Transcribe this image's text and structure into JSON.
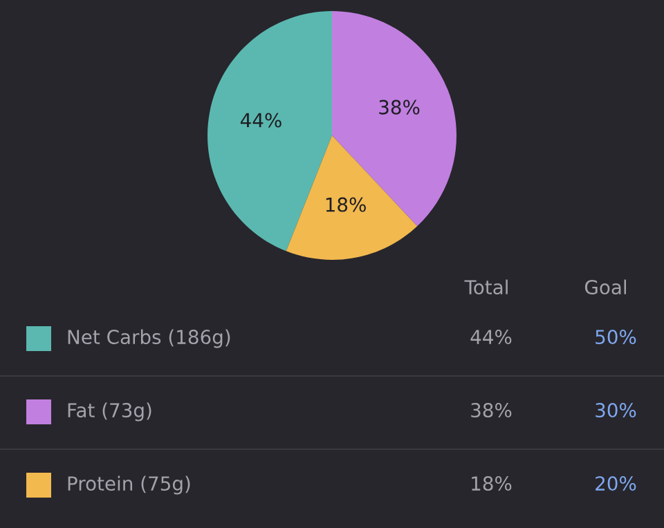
{
  "chart_data": {
    "type": "pie",
    "categories": [
      "Net Carbs (186g)",
      "Fat (73g)",
      "Protein (75g)"
    ],
    "values": [
      44,
      38,
      18
    ],
    "value_labels": [
      "44%",
      "38%",
      "18%"
    ],
    "colors": [
      "#5bb8b0",
      "#c17fe0",
      "#f2b94f"
    ],
    "legend": "bottom",
    "annotations": [
      "Total",
      "Goal",
      "50%",
      "30%",
      "20%"
    ]
  }
}
